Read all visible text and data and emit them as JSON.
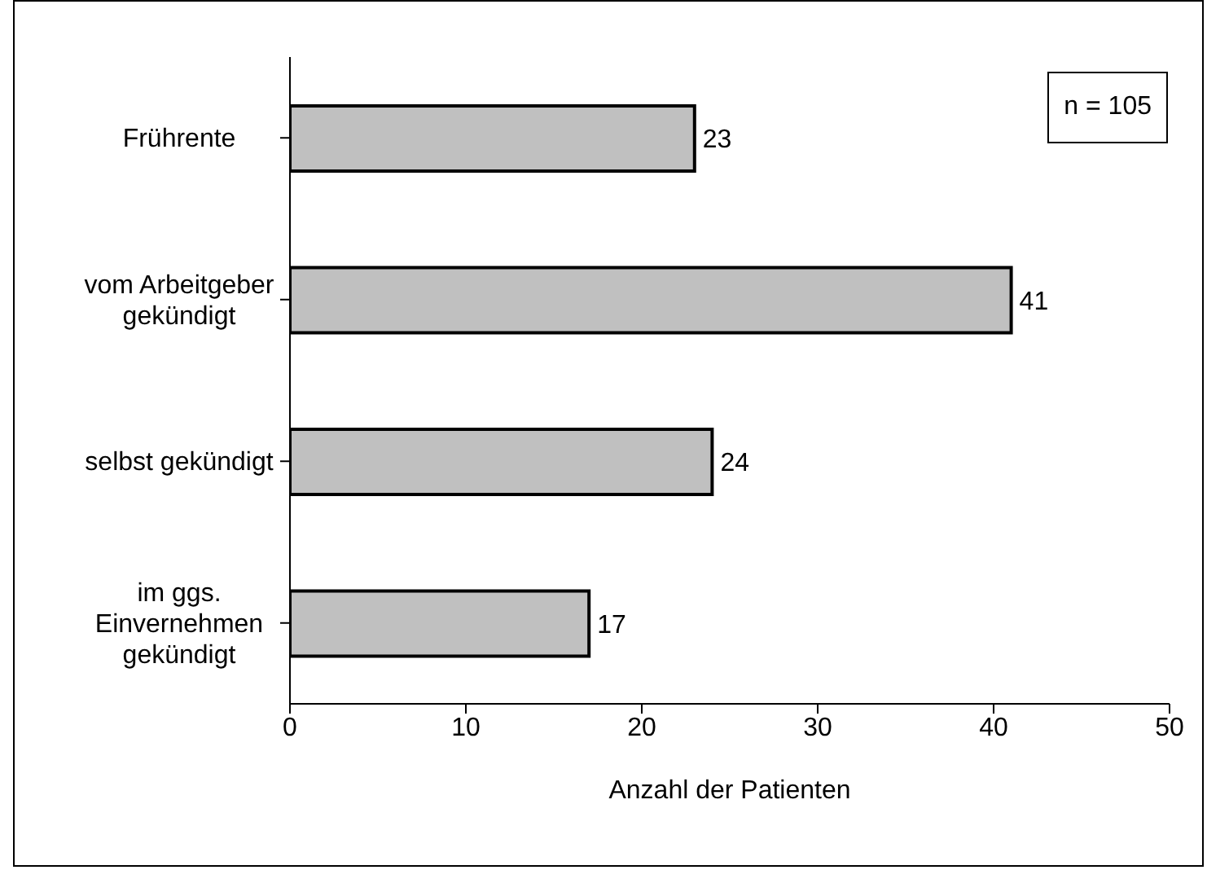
{
  "chart_data": {
    "type": "bar",
    "orientation": "horizontal",
    "categories": [
      "Frührente",
      "vom Arbeitgeber\ngekündigt",
      "selbst gekündigt",
      "im ggs.\nEinvernehmen\ngekündigt"
    ],
    "values": [
      23,
      41,
      24,
      17
    ],
    "color": "#c0c0c0",
    "xlim": [
      0,
      50
    ],
    "xticks": [
      0,
      10,
      20,
      30,
      40,
      50
    ],
    "xlabel": "Anzahl der Patienten",
    "annotations": [
      "n = 105"
    ],
    "data_labels": true,
    "grid": false,
    "legend": false
  }
}
